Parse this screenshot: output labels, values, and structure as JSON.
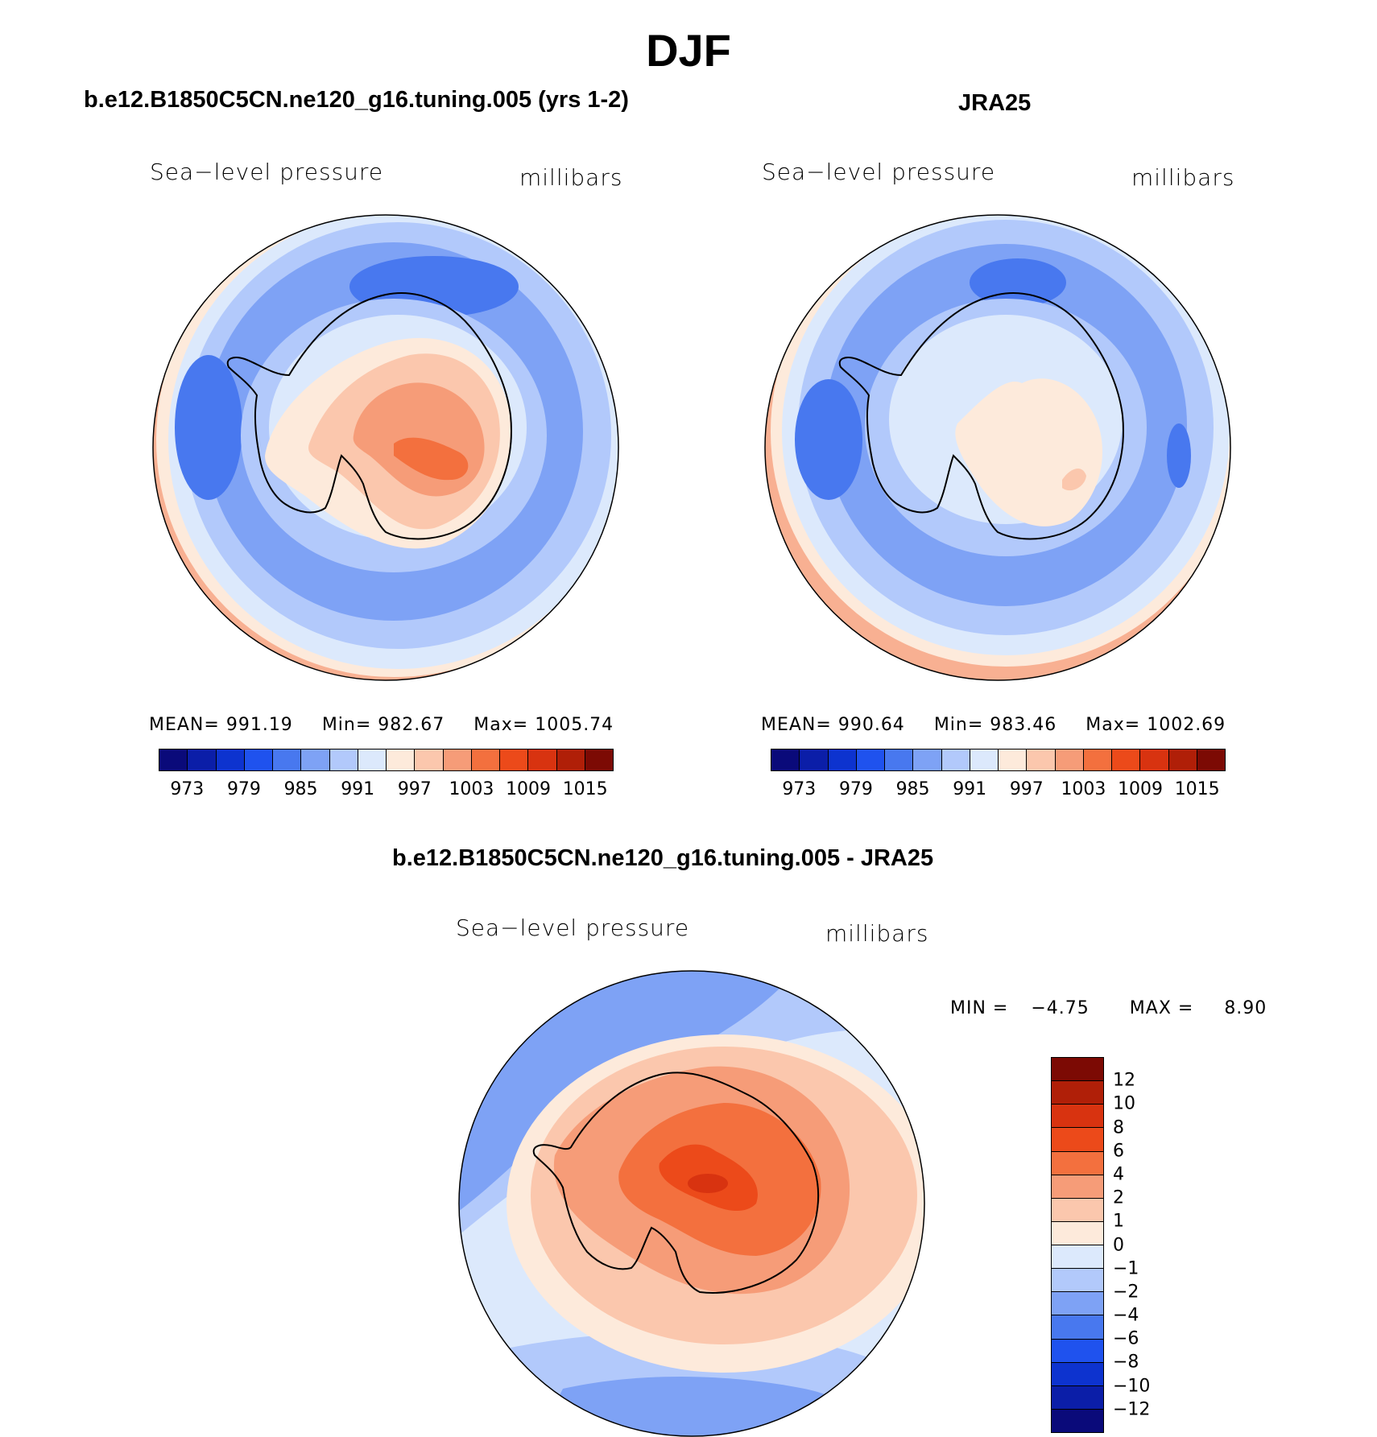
{
  "chart_data": [
    {
      "type": "heatmap",
      "title": "DJF",
      "subtitle": "b.e12.B1850C5CN.ne120_g16.tuning.005 (yrs 1-2)",
      "variable": "Sea−level pressure",
      "units": "millibars",
      "projection": "south-polar-stereographic",
      "stats": {
        "mean_label": "MEAN=",
        "mean": "991.19",
        "min_label": "Min=",
        "min": "982.67",
        "max_label": "Max=",
        "max": "1005.74"
      },
      "colorbar": {
        "levels": [
          973,
          976,
          979,
          982,
          985,
          988,
          991,
          994,
          997,
          1000,
          1003,
          1006,
          1009,
          1012,
          1015
        ],
        "tick_labels": [
          "973",
          "979",
          "985",
          "991",
          "997",
          "1003",
          "1009",
          "1015"
        ],
        "colors": [
          "#0a0a7a",
          "#0b1ea8",
          "#0d33cf",
          "#1f52ee",
          "#4878ef",
          "#7ea2f5",
          "#b2c9fb",
          "#dce9fc",
          "#fdeadb",
          "#fbc7ad",
          "#f69c78",
          "#f3703e",
          "#ec4a1a",
          "#d83310",
          "#b01f08",
          "#7c0a04"
        ]
      }
    },
    {
      "type": "heatmap",
      "subtitle": "JRA25",
      "variable": "Sea−level pressure",
      "units": "millibars",
      "projection": "south-polar-stereographic",
      "stats": {
        "mean_label": "MEAN=",
        "mean": "990.64",
        "min_label": "Min=",
        "min": "983.46",
        "max_label": "Max=",
        "max": "1002.69"
      },
      "colorbar": {
        "levels": [
          973,
          976,
          979,
          982,
          985,
          988,
          991,
          994,
          997,
          1000,
          1003,
          1006,
          1009,
          1012,
          1015
        ],
        "tick_labels": [
          "973",
          "979",
          "985",
          "991",
          "997",
          "1003",
          "1009",
          "1015"
        ],
        "colors": [
          "#0a0a7a",
          "#0b1ea8",
          "#0d33cf",
          "#1f52ee",
          "#4878ef",
          "#7ea2f5",
          "#b2c9fb",
          "#dce9fc",
          "#fdeadb",
          "#fbc7ad",
          "#f69c78",
          "#f3703e",
          "#ec4a1a",
          "#d83310",
          "#b01f08",
          "#7c0a04"
        ]
      }
    },
    {
      "type": "heatmap",
      "subtitle": "b.e12.B1850C5CN.ne120_g16.tuning.005 - JRA25",
      "variable": "Sea−level pressure",
      "units": "millibars",
      "projection": "south-polar-stereographic",
      "stats": {
        "min_label": "MIN =",
        "min": "−4.75",
        "max_label": "MAX =",
        "max": "8.90"
      },
      "colorbar": {
        "levels": [
          -12,
          -10,
          -8,
          -6,
          -4,
          -2,
          -1,
          0,
          1,
          2,
          4,
          6,
          8,
          10,
          12
        ],
        "tick_labels": [
          "12",
          "10",
          "8",
          "6",
          "4",
          "2",
          "1",
          "0",
          "−1",
          "−2",
          "−4",
          "−6",
          "−8",
          "−10",
          "−12"
        ],
        "colors": [
          "#7c0a04",
          "#b01f08",
          "#d83310",
          "#ec4a1a",
          "#f3703e",
          "#f69c78",
          "#fbc7ad",
          "#fdeadb",
          "#dce9fc",
          "#b2c9fb",
          "#7ea2f5",
          "#4878ef",
          "#1f52ee",
          "#0d33cf",
          "#0b1ea8",
          "#0a0a7a"
        ]
      }
    }
  ]
}
